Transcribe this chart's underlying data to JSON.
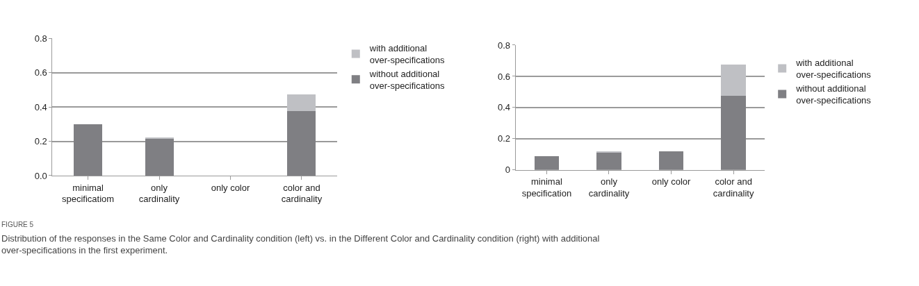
{
  "chart_data": [
    {
      "type": "bar",
      "stacked": true,
      "categories": [
        "minimal specificatiom",
        "only cardinality",
        "only color",
        "color and cardinality"
      ],
      "series": [
        {
          "name": "without additional over-specifications",
          "color": "#7f7f83",
          "values": [
            0.3,
            0.215,
            0,
            0.375
          ]
        },
        {
          "name": "with additional over-specifications",
          "color": "#bfc0c4",
          "values": [
            0,
            0.005,
            0,
            0.1
          ]
        }
      ],
      "ylim": [
        0,
        0.8
      ],
      "yticks": [
        {
          "value": 0,
          "label": "0.0"
        },
        0.2,
        0.4,
        0.6,
        0.8
      ],
      "grid": "y",
      "legend": "right",
      "annotations": [
        "FIGURE 5",
        "Distribution of the responses in the Same Color and Cardinality condition (left) vs. in the Different Color and Cardinality condition (right) with additional over-specifications in the first experiment."
      ]
    },
    {
      "type": "bar",
      "stacked": true,
      "categories": [
        "minimal specification",
        "only cardinality",
        "only color",
        "color and cardinality"
      ],
      "series": [
        {
          "name": "without additional over-specifications",
          "color": "#7f7f83",
          "values": [
            0.087,
            0.113,
            0.12,
            0.475
          ]
        },
        {
          "name": "with additional over-specifications",
          "color": "#bfc0c4",
          "values": [
            0,
            0.005,
            0,
            0.2
          ]
        }
      ],
      "ylim": [
        0,
        0.8
      ],
      "yticks": [
        0,
        0.2,
        0.4,
        0.6,
        0.8
      ],
      "grid": "y",
      "legend": "right"
    }
  ]
}
